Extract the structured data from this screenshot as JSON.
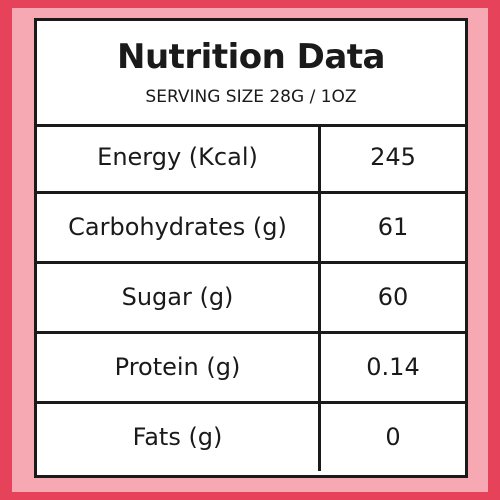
{
  "header": {
    "title": "Nutrition Data",
    "subtitle": "SERVING SIZE 28G / 1OZ"
  },
  "table": {
    "rows": [
      [
        "Energy (Kcal)",
        "245"
      ],
      [
        "Carbohydrates (g)",
        "61"
      ],
      [
        "Sugar (g)",
        "60"
      ],
      [
        "Protein (g)",
        "0.14"
      ],
      [
        "Fats (g)",
        "0"
      ]
    ]
  }
}
